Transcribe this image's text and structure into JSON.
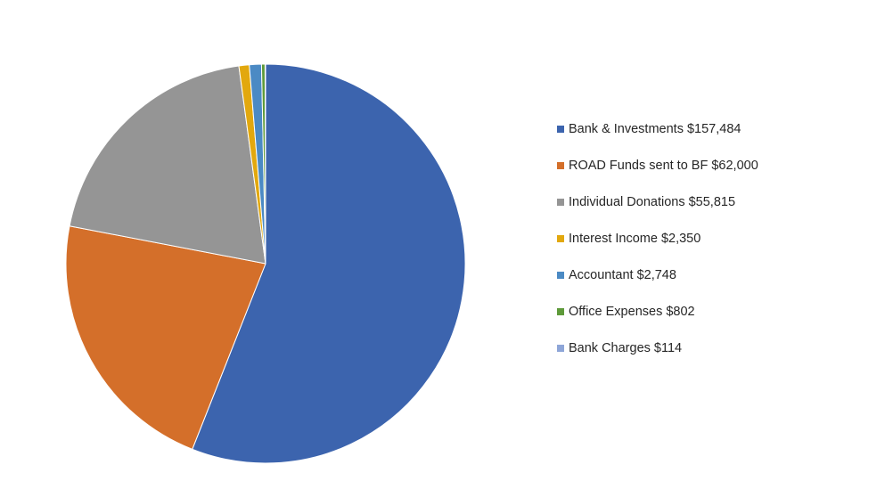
{
  "chart_data": {
    "type": "pie",
    "title": "",
    "start_angle_deg": 0,
    "direction": "clockwise",
    "legend_position": "right",
    "slices": [
      {
        "label": "Bank & Investments $157,484",
        "category": "Bank & Investments",
        "value": 157484,
        "color": "#3C64AE"
      },
      {
        "label": "ROAD Funds sent to BF $62,000",
        "category": "ROAD Funds sent to BF",
        "value": 62000,
        "color": "#D46F2A"
      },
      {
        "label": "Individual Donations $55,815",
        "category": "Individual Donations",
        "value": 55815,
        "color": "#959595"
      },
      {
        "label": "Interest Income $2,350",
        "category": "Interest Income",
        "value": 2350,
        "color": "#E2A80E"
      },
      {
        "label": "Accountant $2,748",
        "category": "Accountant",
        "value": 2748,
        "color": "#4B8AC4"
      },
      {
        "label": "Office Expenses $802",
        "category": "Office Expenses",
        "value": 802,
        "color": "#5E9A3A"
      },
      {
        "label": "Bank Charges $114",
        "category": "Bank Charges",
        "value": 114,
        "color": "#8EA6D8"
      }
    ]
  }
}
